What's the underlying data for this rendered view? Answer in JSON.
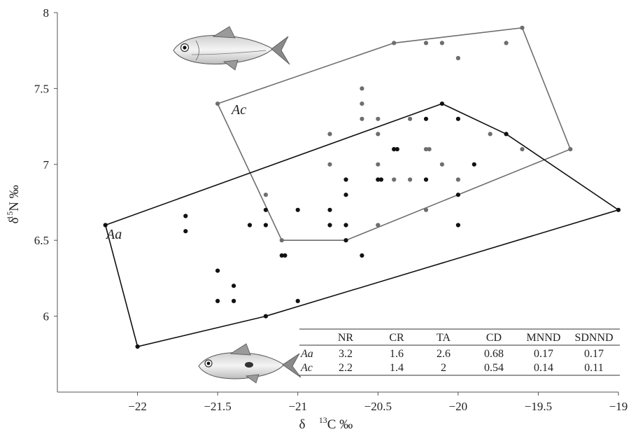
{
  "chart_data": {
    "type": "scatter",
    "xlabel": "δ13C ‰",
    "ylabel": "δ15N ‰",
    "xlim": [
      -22.5,
      -19
    ],
    "ylim": [
      5.5,
      8
    ],
    "x_ticks": [
      -22,
      -21.5,
      -21,
      -20.5,
      -20,
      -19.5,
      -19
    ],
    "x_tick_labels": [
      "−22",
      "−21.5",
      "−21",
      "−20.5",
      "−20",
      "−19.5",
      "−19"
    ],
    "y_ticks": [
      6,
      6.5,
      7,
      7.5,
      8
    ],
    "y_tick_labels": [
      "6",
      "6.5",
      "7",
      "7.5",
      "8"
    ],
    "grid": false,
    "series": [
      {
        "name": "Aa",
        "color": "#111111",
        "hull": [
          [
            -22.2,
            6.6
          ],
          [
            -20.1,
            7.4
          ],
          [
            -19.7,
            7.2
          ],
          [
            -19.0,
            6.7
          ],
          [
            -21.2,
            6.0
          ],
          [
            -22.0,
            5.8
          ]
        ],
        "points": [
          [
            -22.2,
            6.6
          ],
          [
            -22.0,
            5.8
          ],
          [
            -21.7,
            6.66
          ],
          [
            -21.7,
            6.56
          ],
          [
            -21.5,
            6.3
          ],
          [
            -21.5,
            6.1
          ],
          [
            -21.4,
            6.2
          ],
          [
            -21.4,
            6.1
          ],
          [
            -21.3,
            6.6
          ],
          [
            -21.2,
            6.7
          ],
          [
            -21.2,
            6.6
          ],
          [
            -21.2,
            6.0
          ],
          [
            -21.1,
            6.4
          ],
          [
            -21.08,
            6.4
          ],
          [
            -21.0,
            6.7
          ],
          [
            -21.0,
            6.1
          ],
          [
            -20.8,
            6.7
          ],
          [
            -20.8,
            6.6
          ],
          [
            -20.7,
            6.9
          ],
          [
            -20.7,
            6.8
          ],
          [
            -20.7,
            6.6
          ],
          [
            -20.7,
            6.5
          ],
          [
            -20.6,
            6.4
          ],
          [
            -20.5,
            6.9
          ],
          [
            -20.48,
            6.9
          ],
          [
            -20.4,
            7.1
          ],
          [
            -20.38,
            7.1
          ],
          [
            -20.2,
            7.3
          ],
          [
            -20.2,
            6.9
          ],
          [
            -20.1,
            7.4
          ],
          [
            -20.0,
            7.3
          ],
          [
            -20.0,
            6.8
          ],
          [
            -20.0,
            6.6
          ],
          [
            -19.9,
            7.0
          ],
          [
            -19.7,
            7.2
          ],
          [
            -19.0,
            6.7
          ]
        ]
      },
      {
        "name": "Ac",
        "color": "#6e6e6e",
        "hull": [
          [
            -21.5,
            7.4
          ],
          [
            -20.4,
            7.8
          ],
          [
            -19.6,
            7.9
          ],
          [
            -19.3,
            7.1
          ],
          [
            -20.7,
            6.5
          ],
          [
            -21.1,
            6.5
          ]
        ],
        "points": [
          [
            -21.5,
            7.4
          ],
          [
            -21.2,
            6.8
          ],
          [
            -21.1,
            6.5
          ],
          [
            -20.8,
            7.2
          ],
          [
            -20.8,
            7.0
          ],
          [
            -20.7,
            6.5
          ],
          [
            -20.6,
            7.5
          ],
          [
            -20.6,
            7.4
          ],
          [
            -20.6,
            7.3
          ],
          [
            -20.5,
            7.3
          ],
          [
            -20.5,
            7.2
          ],
          [
            -20.5,
            7.0
          ],
          [
            -20.5,
            6.6
          ],
          [
            -20.4,
            7.8
          ],
          [
            -20.4,
            7.1
          ],
          [
            -20.4,
            6.9
          ],
          [
            -20.3,
            6.9
          ],
          [
            -20.3,
            7.3
          ],
          [
            -20.2,
            7.8
          ],
          [
            -20.2,
            7.1
          ],
          [
            -20.18,
            7.1
          ],
          [
            -20.2,
            6.7
          ],
          [
            -20.1,
            7.8
          ],
          [
            -20.1,
            7.0
          ],
          [
            -20.0,
            7.7
          ],
          [
            -20.0,
            6.9
          ],
          [
            -19.8,
            7.2
          ],
          [
            -19.7,
            7.8
          ],
          [
            -19.6,
            7.9
          ],
          [
            -19.6,
            7.1
          ],
          [
            -19.3,
            7.1
          ]
        ]
      }
    ],
    "hull_labels": [
      "Ac",
      "Aa"
    ],
    "table": {
      "headers": [
        "",
        "NR",
        "CR",
        "TA",
        "CD",
        "MNND",
        "SDNND"
      ],
      "rows": [
        [
          "Aa",
          "3.2",
          "1.6",
          "2.6",
          "0.68",
          "0.17",
          "0.17"
        ],
        [
          "Ac",
          "2.2",
          "1.4",
          "2",
          "0.54",
          "0.14",
          "0.11"
        ]
      ]
    },
    "illustrations": [
      "fish-icon",
      "fish-icon"
    ]
  }
}
